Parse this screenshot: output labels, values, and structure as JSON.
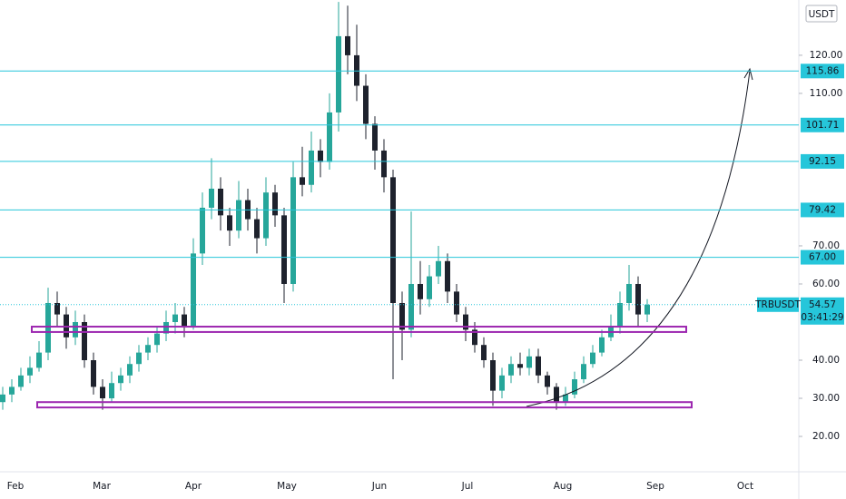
{
  "chart_data": {
    "type": "candlestick",
    "currency": "USDT",
    "symbol": "TRBUSDT",
    "last_price": 54.57,
    "countdown": "03:41:29",
    "up_color": "#26a69a",
    "down_color": "#1e222d",
    "level_color": "#26c6da",
    "zone_color": "#9c27b0",
    "ylim": [
      11.2,
      134.5
    ],
    "yticks": [
      {
        "value": 20,
        "label": "20.00"
      },
      {
        "value": 30,
        "label": "30.00"
      },
      {
        "value": 40,
        "label": "40.00"
      },
      {
        "value": 60,
        "label": "60.00"
      },
      {
        "value": 70,
        "label": "70.00"
      },
      {
        "value": 110,
        "label": "110.00"
      },
      {
        "value": 120,
        "label": "120.00"
      }
    ],
    "xticks": [
      "Feb",
      "Mar",
      "Apr",
      "May",
      "Jun",
      "Jul",
      "Aug",
      "Sep",
      "Oct"
    ],
    "levels": [
      115.86,
      101.71,
      92.15,
      79.42,
      {
        "value": 67,
        "label": "67.00"
      }
    ],
    "zones": [
      [
        48.8,
        47.4
      ],
      [
        29.0,
        27.6
      ]
    ],
    "ohlc": [
      [
        29,
        33,
        27,
        31
      ],
      [
        31,
        35,
        29,
        33
      ],
      [
        33,
        38,
        32,
        36
      ],
      [
        36,
        41,
        34,
        38
      ],
      [
        38,
        45,
        37,
        42
      ],
      [
        42,
        59,
        40,
        55
      ],
      [
        55,
        58,
        49,
        52
      ],
      [
        52,
        54,
        43,
        46
      ],
      [
        46,
        53,
        44,
        50
      ],
      [
        50,
        52,
        38,
        40
      ],
      [
        40,
        42,
        31,
        33
      ],
      [
        33,
        35,
        27,
        30
      ],
      [
        30,
        37,
        29,
        34
      ],
      [
        34,
        38,
        32,
        36
      ],
      [
        36,
        41,
        34,
        39
      ],
      [
        39,
        44,
        37,
        42
      ],
      [
        42,
        46,
        40,
        44
      ],
      [
        44,
        49,
        42,
        47
      ],
      [
        47,
        53,
        45,
        50
      ],
      [
        50,
        55,
        47,
        52
      ],
      [
        52,
        54,
        46,
        49
      ],
      [
        49,
        72,
        48,
        68
      ],
      [
        68,
        84,
        65,
        80
      ],
      [
        80,
        93,
        77,
        85
      ],
      [
        85,
        88,
        74,
        78
      ],
      [
        78,
        80,
        70,
        74
      ],
      [
        74,
        87,
        72,
        82
      ],
      [
        82,
        85,
        74,
        77
      ],
      [
        77,
        80,
        68,
        72
      ],
      [
        72,
        88,
        70,
        84
      ],
      [
        84,
        86,
        75,
        78
      ],
      [
        78,
        80,
        55,
        60
      ],
      [
        60,
        92,
        58,
        88
      ],
      [
        88,
        96,
        83,
        86
      ],
      [
        86,
        100,
        84,
        95
      ],
      [
        95,
        98,
        88,
        92
      ],
      [
        92,
        110,
        90,
        105
      ],
      [
        105,
        134,
        100,
        125
      ],
      [
        125,
        133,
        115,
        120
      ],
      [
        120,
        128,
        108,
        112
      ],
      [
        112,
        115,
        98,
        102
      ],
      [
        102,
        104,
        90,
        95
      ],
      [
        95,
        98,
        84,
        88
      ],
      [
        88,
        90,
        35,
        55
      ],
      [
        55,
        58,
        40,
        48
      ],
      [
        48,
        79,
        46,
        60
      ],
      [
        60,
        66,
        52,
        56
      ],
      [
        56,
        65,
        54,
        62
      ],
      [
        62,
        70,
        60,
        66
      ],
      [
        66,
        68,
        55,
        58
      ],
      [
        58,
        60,
        50,
        52
      ],
      [
        52,
        54,
        45,
        48
      ],
      [
        48,
        50,
        42,
        44
      ],
      [
        44,
        46,
        38,
        40
      ],
      [
        40,
        42,
        28,
        32
      ],
      [
        32,
        38,
        30,
        36
      ],
      [
        36,
        41,
        34,
        39
      ],
      [
        39,
        42,
        36,
        38
      ],
      [
        38,
        43,
        36,
        41
      ],
      [
        41,
        43,
        34,
        36
      ],
      [
        36,
        37,
        31,
        33
      ],
      [
        33,
        34,
        27,
        29
      ],
      [
        29,
        33,
        28,
        31
      ],
      [
        31,
        37,
        30,
        35
      ],
      [
        35,
        41,
        34,
        39
      ],
      [
        39,
        44,
        38,
        42
      ],
      [
        42,
        48,
        41,
        46
      ],
      [
        46,
        52,
        45,
        49
      ],
      [
        49,
        58,
        47,
        55
      ],
      [
        55,
        65,
        53,
        60
      ],
      [
        60,
        62,
        49,
        52
      ],
      [
        52,
        56,
        50,
        54.57
      ]
    ]
  }
}
